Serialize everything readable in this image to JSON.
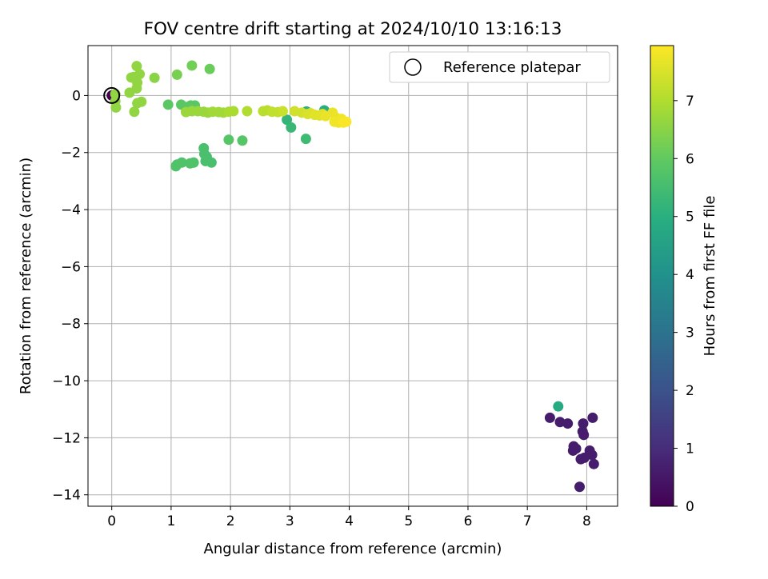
{
  "chart_data": {
    "type": "scatter",
    "title": "FOV centre drift starting at 2024/10/10 13:16:13",
    "xlabel": "Angular distance from reference (arcmin)",
    "ylabel": "Rotation from reference (arcmin)",
    "xlim": [
      -0.4,
      8.52
    ],
    "ylim": [
      -14.4,
      1.75
    ],
    "xticks": [
      "0",
      "1",
      "2",
      "3",
      "4",
      "5",
      "6",
      "7",
      "8"
    ],
    "yticks": [
      "−14",
      "−12",
      "−10",
      "−8",
      "−6",
      "−4",
      "−2",
      "0"
    ],
    "grid": true,
    "legend": {
      "position": "top-right",
      "entries": [
        "Reference platepar"
      ]
    },
    "reference_point": {
      "x": 0,
      "y": 0
    },
    "colorbar": {
      "label": "Hours from first FF file",
      "colormap": "viridis",
      "range": [
        0,
        7.95
      ],
      "ticks": [
        "0",
        "1",
        "2",
        "3",
        "4",
        "5",
        "6",
        "7"
      ]
    },
    "points": [
      {
        "x": 0.0,
        "y": 0.0,
        "t": 0.0
      },
      {
        "x": 7.52,
        "y": -10.9,
        "t": 4.8
      },
      {
        "x": 7.38,
        "y": -11.3,
        "t": 0.6
      },
      {
        "x": 7.55,
        "y": -11.45,
        "t": 0.6
      },
      {
        "x": 7.68,
        "y": -11.5,
        "t": 0.6
      },
      {
        "x": 7.94,
        "y": -11.5,
        "t": 0.6
      },
      {
        "x": 8.1,
        "y": -11.3,
        "t": 0.6
      },
      {
        "x": 7.93,
        "y": -11.78,
        "t": 0.6
      },
      {
        "x": 7.95,
        "y": -11.9,
        "t": 0.6
      },
      {
        "x": 7.78,
        "y": -12.3,
        "t": 0.6
      },
      {
        "x": 7.77,
        "y": -12.45,
        "t": 0.6
      },
      {
        "x": 7.82,
        "y": -12.38,
        "t": 0.6
      },
      {
        "x": 8.05,
        "y": -12.45,
        "t": 0.6
      },
      {
        "x": 8.09,
        "y": -12.6,
        "t": 0.6
      },
      {
        "x": 7.9,
        "y": -12.75,
        "t": 0.6
      },
      {
        "x": 7.96,
        "y": -12.7,
        "t": 0.6
      },
      {
        "x": 8.12,
        "y": -12.92,
        "t": 0.6
      },
      {
        "x": 7.88,
        "y": -13.72,
        "t": 0.6
      },
      {
        "x": 2.95,
        "y": -0.85,
        "t": 5.2
      },
      {
        "x": 3.02,
        "y": -1.12,
        "t": 5.3
      },
      {
        "x": 3.27,
        "y": -1.52,
        "t": 5.4
      },
      {
        "x": 3.58,
        "y": -0.52,
        "t": 4.9
      },
      {
        "x": 3.28,
        "y": -0.56,
        "t": 5.0
      },
      {
        "x": 1.55,
        "y": -1.85,
        "t": 5.6
      },
      {
        "x": 1.56,
        "y": -2.05,
        "t": 5.6
      },
      {
        "x": 1.6,
        "y": -2.15,
        "t": 5.6
      },
      {
        "x": 1.58,
        "y": -2.3,
        "t": 5.6
      },
      {
        "x": 1.68,
        "y": -2.35,
        "t": 5.6
      },
      {
        "x": 1.38,
        "y": -2.35,
        "t": 5.7
      },
      {
        "x": 1.32,
        "y": -2.38,
        "t": 5.7
      },
      {
        "x": 1.18,
        "y": -2.35,
        "t": 5.7
      },
      {
        "x": 1.1,
        "y": -2.42,
        "t": 5.7
      },
      {
        "x": 1.08,
        "y": -2.48,
        "t": 5.7
      },
      {
        "x": 1.97,
        "y": -1.55,
        "t": 5.8
      },
      {
        "x": 2.2,
        "y": -1.58,
        "t": 5.8
      },
      {
        "x": 0.95,
        "y": -0.32,
        "t": 5.9
      },
      {
        "x": 1.17,
        "y": -0.32,
        "t": 5.9
      },
      {
        "x": 1.33,
        "y": -0.35,
        "t": 5.9
      },
      {
        "x": 1.4,
        "y": -0.35,
        "t": 5.9
      },
      {
        "x": 1.28,
        "y": -0.4,
        "t": 5.9
      },
      {
        "x": 1.65,
        "y": 0.93,
        "t": 6.1
      },
      {
        "x": 1.35,
        "y": 1.05,
        "t": 6.2
      },
      {
        "x": 1.1,
        "y": 0.73,
        "t": 6.3
      },
      {
        "x": 0.72,
        "y": 0.62,
        "t": 6.5
      },
      {
        "x": 0.42,
        "y": 1.03,
        "t": 6.6
      },
      {
        "x": 0.47,
        "y": 0.75,
        "t": 6.6
      },
      {
        "x": 0.37,
        "y": 0.65,
        "t": 6.6
      },
      {
        "x": 0.33,
        "y": 0.63,
        "t": 6.6
      },
      {
        "x": 0.43,
        "y": 0.45,
        "t": 6.6
      },
      {
        "x": 0.42,
        "y": 0.25,
        "t": 6.6
      },
      {
        "x": 0.3,
        "y": 0.1,
        "t": 6.6
      },
      {
        "x": 0.5,
        "y": -0.22,
        "t": 6.6
      },
      {
        "x": 0.43,
        "y": -0.27,
        "t": 6.6
      },
      {
        "x": 0.38,
        "y": -0.57,
        "t": 6.6
      },
      {
        "x": 0.06,
        "y": 0.05,
        "t": 6.6
      },
      {
        "x": 0.06,
        "y": -0.2,
        "t": 6.6
      },
      {
        "x": 0.07,
        "y": -0.42,
        "t": 6.6
      },
      {
        "x": 1.25,
        "y": -0.58,
        "t": 6.7
      },
      {
        "x": 1.35,
        "y": -0.55,
        "t": 6.7
      },
      {
        "x": 1.45,
        "y": -0.55,
        "t": 6.7
      },
      {
        "x": 1.55,
        "y": -0.57,
        "t": 6.7
      },
      {
        "x": 1.62,
        "y": -0.6,
        "t": 6.7
      },
      {
        "x": 1.7,
        "y": -0.57,
        "t": 6.8
      },
      {
        "x": 1.8,
        "y": -0.58,
        "t": 6.8
      },
      {
        "x": 1.88,
        "y": -0.6,
        "t": 6.8
      },
      {
        "x": 1.97,
        "y": -0.57,
        "t": 6.9
      },
      {
        "x": 2.05,
        "y": -0.55,
        "t": 6.9
      },
      {
        "x": 2.28,
        "y": -0.55,
        "t": 7.0
      },
      {
        "x": 2.55,
        "y": -0.55,
        "t": 7.1
      },
      {
        "x": 2.62,
        "y": -0.52,
        "t": 7.1
      },
      {
        "x": 2.7,
        "y": -0.57,
        "t": 7.2
      },
      {
        "x": 2.8,
        "y": -0.58,
        "t": 7.2
      },
      {
        "x": 2.88,
        "y": -0.55,
        "t": 7.3
      },
      {
        "x": 3.08,
        "y": -0.55,
        "t": 7.4
      },
      {
        "x": 3.2,
        "y": -0.6,
        "t": 7.4
      },
      {
        "x": 3.3,
        "y": -0.65,
        "t": 7.5
      },
      {
        "x": 3.35,
        "y": -0.62,
        "t": 7.5
      },
      {
        "x": 3.42,
        "y": -0.68,
        "t": 7.6
      },
      {
        "x": 3.5,
        "y": -0.7,
        "t": 7.6
      },
      {
        "x": 3.55,
        "y": -0.65,
        "t": 7.6
      },
      {
        "x": 3.6,
        "y": -0.72,
        "t": 7.7
      },
      {
        "x": 3.72,
        "y": -0.6,
        "t": 7.7
      },
      {
        "x": 3.78,
        "y": -0.78,
        "t": 7.7
      },
      {
        "x": 3.75,
        "y": -0.92,
        "t": 7.8
      },
      {
        "x": 3.82,
        "y": -0.95,
        "t": 7.8
      },
      {
        "x": 3.87,
        "y": -0.82,
        "t": 7.8
      },
      {
        "x": 3.9,
        "y": -0.95,
        "t": 7.9
      },
      {
        "x": 3.95,
        "y": -0.92,
        "t": 7.9
      }
    ]
  }
}
